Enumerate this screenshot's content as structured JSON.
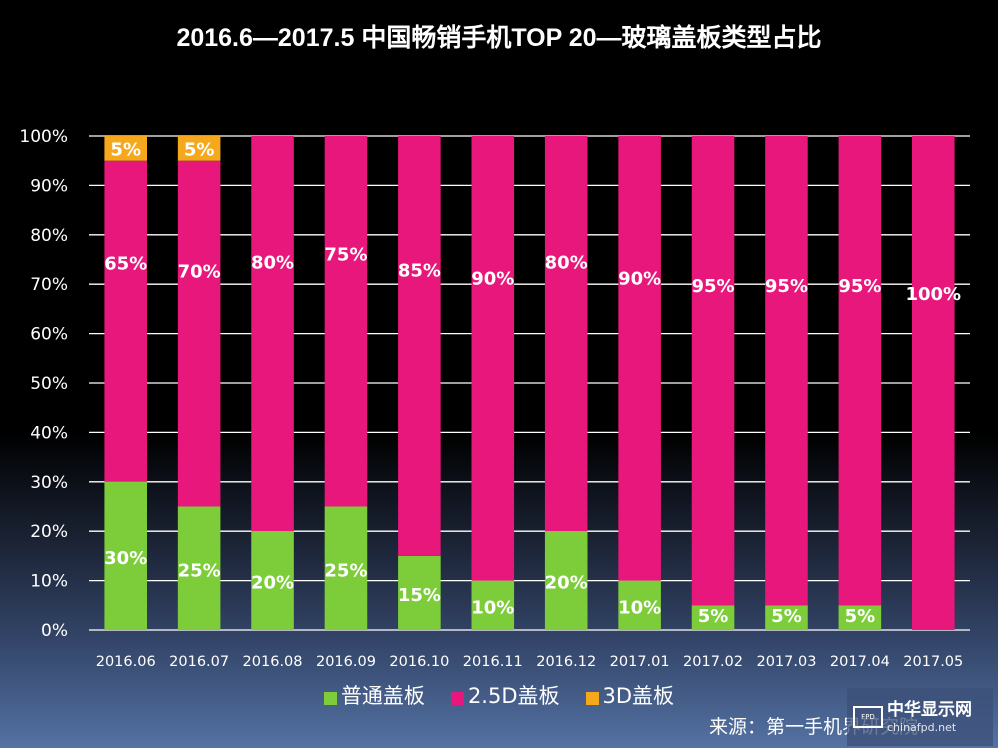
{
  "chart_data": {
    "type": "bar",
    "stacked": true,
    "title": "2016.6—2017.5 中国畅销手机TOP 20—玻璃盖板类型占比",
    "xlabel": "",
    "ylabel": "",
    "ylim": [
      0,
      100
    ],
    "yticks": [
      "0%",
      "10%",
      "20%",
      "30%",
      "40%",
      "50%",
      "60%",
      "70%",
      "80%",
      "90%",
      "100%"
    ],
    "grid": true,
    "legend_position": "bottom",
    "categories": [
      "2016.06",
      "2016.07",
      "2016.08",
      "2016.09",
      "2016.10",
      "2016.11",
      "2016.12",
      "2017.01",
      "2017.02",
      "2017.03",
      "2017.04",
      "2017.05"
    ],
    "series": [
      {
        "name": "普通盖板",
        "color": "#7dcd3a",
        "values": [
          30,
          25,
          20,
          25,
          15,
          10,
          20,
          10,
          5,
          5,
          5,
          0
        ]
      },
      {
        "name": "2.5D盖板",
        "color": "#e8177b",
        "values": [
          65,
          70,
          80,
          75,
          85,
          90,
          80,
          90,
          95,
          95,
          95,
          100
        ]
      },
      {
        "name": "3D盖板",
        "color": "#f5a81c",
        "values": [
          5,
          5,
          0,
          0,
          0,
          0,
          0,
          0,
          0,
          0,
          0,
          0
        ]
      }
    ],
    "data_labels": true,
    "source": "来源：第一手机界研究院"
  },
  "source_text": "来源：第一手机界研究院",
  "watermark": {
    "logo_text": "FPD",
    "name": "中华显示网",
    "url": "chinafpd.net"
  }
}
